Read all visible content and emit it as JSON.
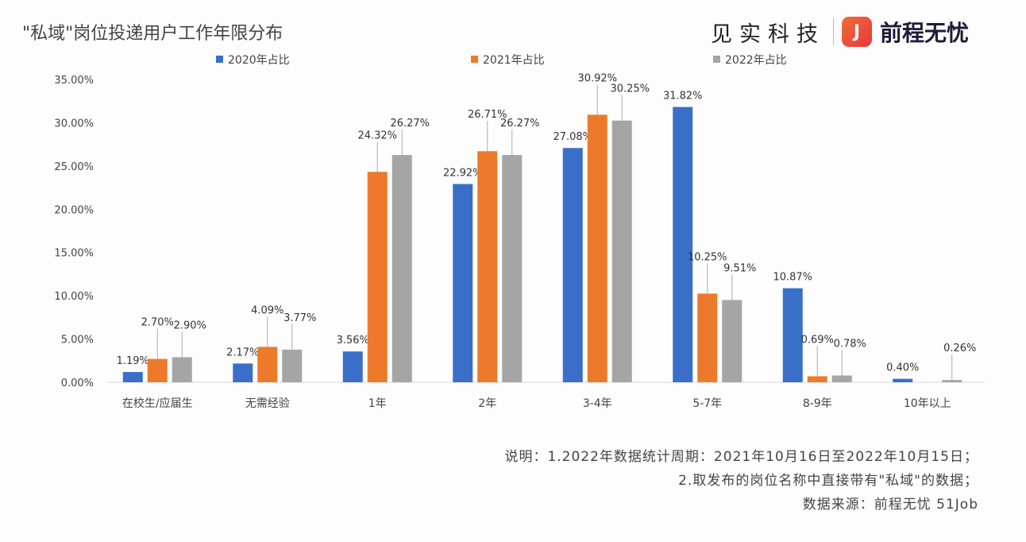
{
  "header": {
    "title": "\"私域\"岗位投递用户工作年限分布",
    "brand_left": "见实科技",
    "brand_right": "前程无忧",
    "logo_glyph": "J"
  },
  "notes": [
    "说明：1.2022年数据统计周期：2021年10月16日至2022年10月15日；",
    "2.取发布的岗位名称中直接带有\"私域\"的数据；",
    "数据来源：前程无忧 51Job"
  ],
  "chart_data": {
    "type": "bar",
    "title": "\"私域\"岗位投递用户工作年限分布",
    "categories": [
      "在校生/应届生",
      "无需经验",
      "1年",
      "2年",
      "3-4年",
      "5-7年",
      "8-9年",
      "10年以上"
    ],
    "series": [
      {
        "name": "2020年占比",
        "color": "#3a6fc9",
        "values": [
          1.19,
          2.17,
          3.56,
          22.92,
          27.08,
          31.82,
          10.87,
          0.4
        ]
      },
      {
        "name": "2021年占比",
        "color": "#ec7a2a",
        "values": [
          2.7,
          4.09,
          24.32,
          26.71,
          30.92,
          10.25,
          0.69,
          null
        ]
      },
      {
        "name": "2022年占比",
        "color": "#a5a5a5",
        "values": [
          2.9,
          3.77,
          26.27,
          26.27,
          30.25,
          9.51,
          0.78,
          0.26
        ]
      }
    ],
    "yticks": [
      "0.00%",
      "5.00%",
      "10.00%",
      "15.00%",
      "20.00%",
      "25.00%",
      "30.00%",
      "35.00%"
    ],
    "ylim": [
      0,
      35
    ],
    "grid": false,
    "legend": "top"
  }
}
